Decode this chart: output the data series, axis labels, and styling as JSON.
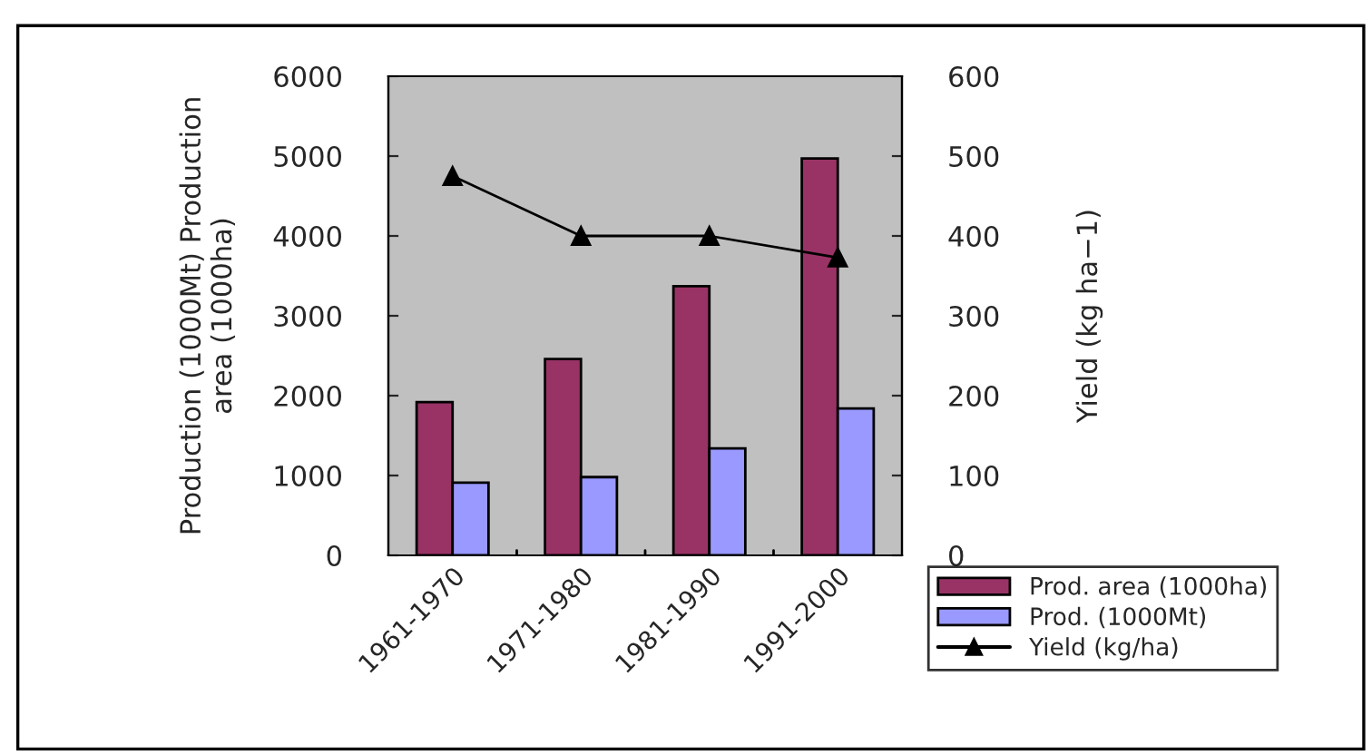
{
  "chart_data": {
    "type": "bar",
    "ylabel": "Production (1000Mt) Production\narea (1000ha)",
    "y2label": "Yield (kg ha−1)",
    "categories": [
      "1961-1970",
      "1971-1980",
      "1981-1990",
      "1991-2000"
    ],
    "series": [
      {
        "name": "Prod. area (1000ha)",
        "color": "#993366",
        "values": [
          1920,
          2460,
          3370,
          4970
        ]
      },
      {
        "name": "Prod. (1000Mt)",
        "color": "#9999ff",
        "values": [
          910,
          980,
          1340,
          1840
        ]
      },
      {
        "name": "Yield (kg/ha)",
        "type": "line",
        "axis": "y2",
        "color": "#000000",
        "marker": "triangle",
        "values": [
          475,
          400,
          400,
          373
        ]
      }
    ],
    "ylim": [
      0,
      6000
    ],
    "yticks": [
      0,
      1000,
      2000,
      3000,
      4000,
      5000,
      6000
    ],
    "y2lim": [
      0,
      600
    ],
    "y2ticks": [
      0,
      100,
      200,
      300,
      400,
      500,
      600
    ],
    "grid": false,
    "legend": "bottom right"
  }
}
